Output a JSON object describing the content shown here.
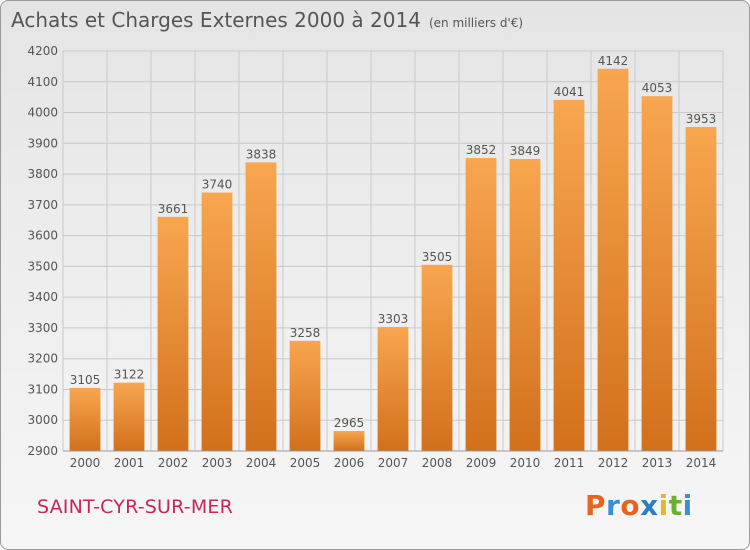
{
  "header": {
    "title": "Achats et Charges Externes 2000 à 2014",
    "unit": "(en milliers d'€)"
  },
  "footer": {
    "commune": "SAINT-CYR-SUR-MER",
    "logo": "Proxiti"
  },
  "colors": {
    "bar_light": "#f8a650",
    "bar_dark": "#d2701c",
    "grid": "#c9c9c9",
    "text": "#555555",
    "commune": "#c8245e",
    "logo_letters": [
      "#e8641e",
      "#3a8fd0",
      "#e8641e",
      "#2a7fc8",
      "#e8b820",
      "#6ab02c",
      "#3a8fd0"
    ]
  },
  "chart_data": {
    "type": "bar",
    "title": "Achats et Charges Externes 2000 à 2014",
    "subtitle": "(en milliers d'€)",
    "xlabel": "",
    "ylabel": "",
    "categories": [
      "2000",
      "2001",
      "2002",
      "2003",
      "2004",
      "2005",
      "2006",
      "2007",
      "2008",
      "2009",
      "2010",
      "2011",
      "2012",
      "2013",
      "2014"
    ],
    "values": [
      3105,
      3122,
      3661,
      3740,
      3838,
      3258,
      2965,
      3303,
      3505,
      3852,
      3849,
      4041,
      4142,
      4053,
      3953
    ],
    "ylim": [
      2900,
      4200
    ],
    "yticks": [
      2900,
      3000,
      3100,
      3200,
      3300,
      3400,
      3500,
      3600,
      3700,
      3800,
      3900,
      4000,
      4100,
      4200
    ],
    "grid": true,
    "legend": "none"
  }
}
